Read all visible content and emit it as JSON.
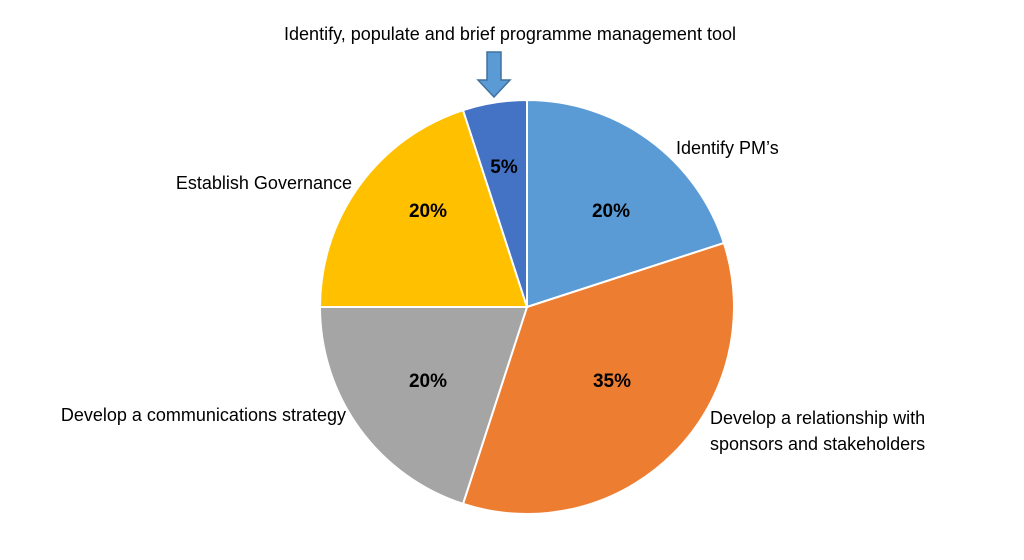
{
  "chart_data": {
    "type": "pie",
    "title": "",
    "start_angle_deg": 0,
    "direction": "clockwise",
    "slices": [
      {
        "name": "Identify PM’s",
        "value": 20,
        "label": "20%",
        "color": "#5B9BD5",
        "category_lines": [
          "Identify PM’s"
        ]
      },
      {
        "name": "Develop a relationship with sponsors and stakeholders",
        "value": 35,
        "label": "35%",
        "color": "#ED7D31",
        "category_lines": [
          "Develop a relationship with",
          "sponsors and stakeholders"
        ]
      },
      {
        "name": "Develop a communications strategy",
        "value": 20,
        "label": "20%",
        "color": "#A5A5A5",
        "category_lines": [
          "Develop a communications strategy"
        ]
      },
      {
        "name": "Establish Governance",
        "value": 20,
        "label": "20%",
        "color": "#FFC000",
        "category_lines": [
          "Establish Governance"
        ]
      },
      {
        "name": "Identify, populate and brief programme management tool",
        "value": 5,
        "label": "5%",
        "color": "#4472C4",
        "category_lines": [
          "Identify, populate and brief programme management tool"
        ]
      }
    ],
    "arrow_color": "#5B9BD5",
    "slice_border_color": "#ffffff"
  }
}
